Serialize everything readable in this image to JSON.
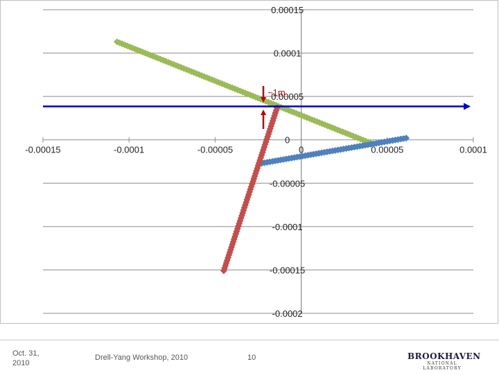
{
  "chart_data": {
    "type": "scatter",
    "xlim": [
      -0.00015,
      0.0001
    ],
    "ylim": [
      -0.0002,
      0.00015
    ],
    "x_ticks": [
      "-0.00015",
      "-0.0001",
      "-0.00005",
      "0",
      "0.00005",
      "0.0001"
    ],
    "y_ticks": [
      "0.00015",
      "0.0001",
      "0.00005",
      "0",
      "-0.00005",
      "-0.0001",
      "-0.00015",
      "-0.0002"
    ],
    "grid": "horizontal",
    "series": [
      {
        "color": "#9bbb59",
        "points": [
          [
            -0.000107,
            0.000113
          ],
          [
            4.2e-05,
            -5e-06
          ]
        ]
      },
      {
        "color": "#4f81bd",
        "points": [
          [
            -2.3e-05,
            -2.7e-05
          ],
          [
            6.1e-05,
            2e-06
          ]
        ]
      },
      {
        "color": "#c0504d",
        "points": [
          [
            -4.5e-05,
            -0.000151
          ],
          [
            -1.4e-05,
            3.7e-05
          ]
        ]
      }
    ],
    "annotations": [
      {
        "text": "~1m",
        "color": "#c00000"
      }
    ],
    "reference_arrow": {
      "color": "#0000c0",
      "y": 3.85e-05,
      "x_from": -0.00015,
      "x_to": 0.0001
    }
  },
  "footer": {
    "date": "Oct. 31, 2010",
    "title": "Drell-Yang Workshop, 2010",
    "page": "10",
    "logo_main": "BROOKHAVEN",
    "logo_sub": "NATIONAL LABORATORY"
  }
}
